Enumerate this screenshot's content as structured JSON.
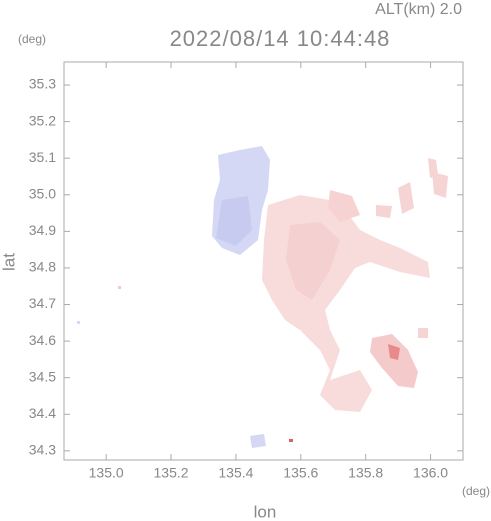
{
  "chart_data": {
    "type": "map",
    "title": "2022/08/14 10:44:48",
    "subtitle": "ALT(km) 2.0",
    "y_unit": "(deg)",
    "x_unit": "(deg)",
    "xlabel": "lon",
    "ylabel": "lat",
    "xlim": [
      134.87,
      136.1
    ],
    "ylim": [
      34.275,
      35.363
    ],
    "xticks": [
      {
        "value": 135,
        "label": "135.0"
      },
      135.2,
      135.4,
      135.6,
      135.8,
      {
        "value": 136,
        "label": "136.0"
      }
    ],
    "yticks": [
      34.3,
      34.4,
      34.5,
      34.6,
      34.7,
      34.8,
      34.9,
      {
        "value": 35,
        "label": "35.0"
      },
      35.1,
      35.2,
      35.3
    ]
  }
}
